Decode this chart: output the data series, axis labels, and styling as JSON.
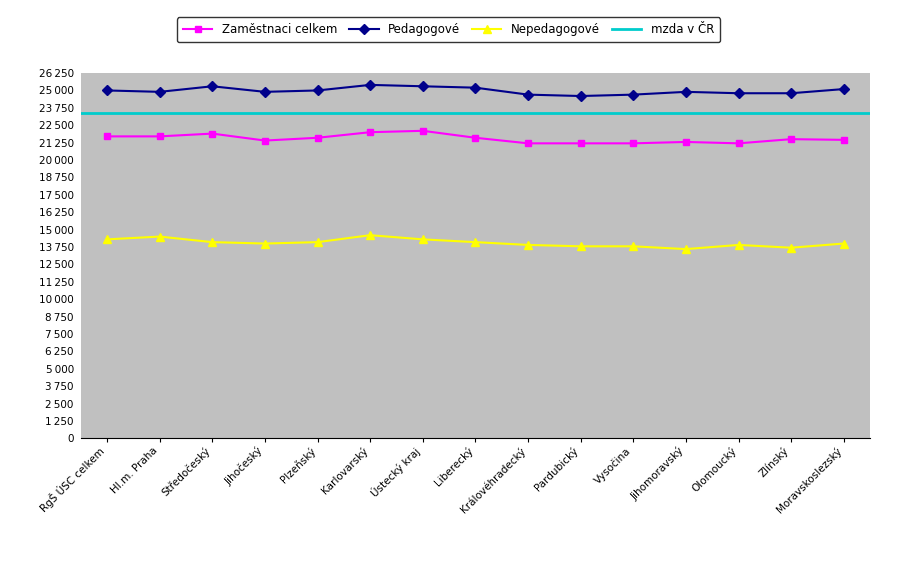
{
  "categories": [
    "RgŠ ÚSC celkem",
    "Hl.m. Praha",
    "Středočeský",
    "Jihočeský",
    "Plzeňský",
    "Karlovarský",
    "Ústecký kraj",
    "Liberecký",
    "Královéhradecký",
    "Pardubický",
    "Vysočina",
    "Jihomoravský",
    "Olomoucký",
    "Zlínský",
    "Moravskoslezský"
  ],
  "zamestnanci": [
    21700,
    21700,
    21900,
    21400,
    21600,
    22000,
    22100,
    21600,
    21200,
    21200,
    21200,
    21300,
    21200,
    21500,
    21450
  ],
  "pedagogove": [
    25000,
    24900,
    25300,
    24900,
    25000,
    25400,
    25300,
    25200,
    24700,
    24600,
    24700,
    24900,
    24800,
    24800,
    25100
  ],
  "nepedagogove": [
    14300,
    14500,
    14100,
    14000,
    14100,
    14600,
    14300,
    14100,
    13900,
    13800,
    13800,
    13600,
    13900,
    13700,
    14000
  ],
  "mzda_cr": 23350,
  "ylim": [
    0,
    26250
  ],
  "ytick_step": 1250,
  "legend_labels": [
    "Zaměstnaci celkem",
    "Pedagogové",
    "Nepedagogové",
    "mzda v ČR"
  ],
  "line_colors": [
    "#FF00FF",
    "#00008B",
    "#FFFF00",
    "#00CCCC"
  ],
  "bg_color": "#C0C0C0",
  "fig_bg_color": "#FFFFFF"
}
